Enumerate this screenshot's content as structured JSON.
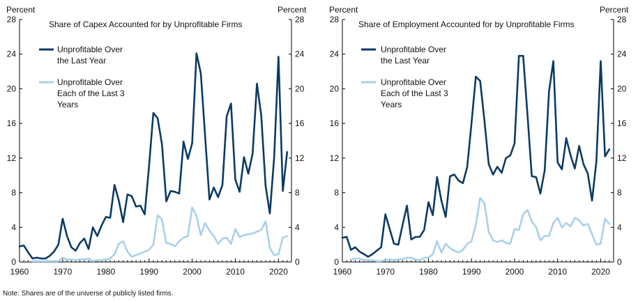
{
  "note": "Note: Shares are of the universe of publicly listed firms.",
  "colors": {
    "dark": "#0b3a63",
    "light": "#a9d0ea"
  },
  "chart_data": [
    {
      "type": "line",
      "title": "Share of Capex Accounted for by Unprofitable  Firms",
      "ylabel_left": "Percent",
      "ylabel_right": "Percent",
      "ylim": [
        0,
        28
      ],
      "yticks": [
        0,
        4,
        8,
        12,
        16,
        20,
        24,
        28
      ],
      "xlim": [
        1960,
        2023
      ],
      "xticks": [
        1960,
        1970,
        1980,
        1990,
        2000,
        2010,
        2020
      ],
      "legend_position": "top-left",
      "series": [
        {
          "name": "Unprofitable Over the Last Year",
          "legend_lines": [
            "Unprofitable Over",
            "the Last Year"
          ],
          "color": "#0b3a63",
          "x": [
            1960,
            1961,
            1962,
            1963,
            1964,
            1965,
            1966,
            1967,
            1968,
            1969,
            1970,
            1971,
            1972,
            1973,
            1974,
            1975,
            1976,
            1977,
            1978,
            1979,
            1980,
            1981,
            1982,
            1983,
            1984,
            1985,
            1986,
            1987,
            1988,
            1989,
            1990,
            1991,
            1992,
            1993,
            1994,
            1995,
            1996,
            1997,
            1998,
            1999,
            2000,
            2001,
            2002,
            2003,
            2004,
            2005,
            2006,
            2007,
            2008,
            2009,
            2010,
            2011,
            2012,
            2013,
            2014,
            2015,
            2016,
            2017,
            2018,
            2019,
            2020,
            2021,
            2022
          ],
          "values": [
            1.8,
            1.9,
            1.1,
            0.4,
            0.5,
            0.4,
            0.4,
            0.7,
            1.2,
            2.0,
            5.0,
            3.0,
            1.7,
            1.3,
            2.2,
            2.7,
            1.5,
            4.0,
            3.0,
            4.2,
            5.2,
            5.1,
            8.9,
            7.1,
            4.6,
            7.8,
            7.6,
            6.4,
            6.5,
            5.5,
            11.0,
            17.2,
            16.6,
            13.6,
            7.0,
            8.2,
            8.1,
            7.9,
            13.9,
            11.9,
            13.7,
            24.1,
            21.8,
            14.5,
            7.2,
            8.6,
            7.5,
            8.9,
            16.8,
            18.3,
            9.5,
            8.1,
            12.1,
            10.2,
            12.5,
            20.6,
            16.9,
            8.8,
            5.6,
            12.1,
            23.7,
            8.2,
            12.7
          ]
        },
        {
          "name": "Unprofitable Over Each of the Last 3 Years",
          "legend_lines": [
            "Unprofitable Over",
            "Each of the Last 3",
            "Years"
          ],
          "color": "#a9d0ea",
          "x": [
            1963,
            1964,
            1965,
            1966,
            1967,
            1968,
            1969,
            1970,
            1971,
            1972,
            1973,
            1974,
            1975,
            1976,
            1977,
            1978,
            1979,
            1980,
            1981,
            1982,
            1983,
            1984,
            1985,
            1986,
            1987,
            1988,
            1989,
            1990,
            1991,
            1992,
            1993,
            1994,
            1995,
            1996,
            1997,
            1998,
            1999,
            2000,
            2001,
            2002,
            2003,
            2004,
            2005,
            2006,
            2007,
            2008,
            2009,
            2010,
            2011,
            2012,
            2013,
            2014,
            2015,
            2016,
            2017,
            2018,
            2019,
            2020,
            2021,
            2022
          ],
          "values": [
            0.1,
            0.1,
            0.1,
            0.1,
            0.1,
            0.1,
            0.1,
            0.5,
            0.3,
            0.3,
            0.2,
            0.3,
            0.3,
            0.4,
            0.1,
            0.2,
            0.2,
            0.3,
            0.4,
            0.9,
            2.1,
            2.4,
            1.2,
            0.6,
            0.8,
            1.0,
            1.2,
            1.4,
            2.0,
            5.4,
            4.9,
            2.2,
            2.1,
            1.8,
            2.4,
            2.8,
            3.0,
            6.3,
            5.3,
            3.1,
            4.5,
            3.6,
            3.0,
            2.1,
            2.7,
            2.8,
            2.1,
            3.8,
            2.9,
            3.1,
            3.2,
            3.3,
            3.5,
            3.7,
            4.7,
            1.6,
            0.8,
            0.9,
            2.8,
            3.0
          ]
        }
      ]
    },
    {
      "type": "line",
      "title": "Share of Employment Accounted for by Unprofitable  Firms",
      "ylabel_left": "Percent",
      "ylabel_right": "Percent",
      "ylim": [
        0,
        28
      ],
      "yticks": [
        0,
        4,
        8,
        12,
        16,
        20,
        24,
        28
      ],
      "xlim": [
        1960,
        2023
      ],
      "xticks": [
        1960,
        1970,
        1980,
        1990,
        2000,
        2010,
        2020
      ],
      "legend_position": "top-left",
      "series": [
        {
          "name": "Unprofitable Over the Last Year",
          "legend_lines": [
            "Unprofitable Over",
            "the Last Year"
          ],
          "color": "#0b3a63",
          "x": [
            1960,
            1961,
            1962,
            1963,
            1964,
            1965,
            1966,
            1967,
            1968,
            1969,
            1970,
            1971,
            1972,
            1973,
            1974,
            1975,
            1976,
            1977,
            1978,
            1979,
            1980,
            1981,
            1982,
            1983,
            1984,
            1985,
            1986,
            1987,
            1988,
            1989,
            1990,
            1991,
            1992,
            1993,
            1994,
            1995,
            1996,
            1997,
            1998,
            1999,
            2000,
            2001,
            2002,
            2003,
            2004,
            2005,
            2006,
            2007,
            2008,
            2009,
            2010,
            2011,
            2012,
            2013,
            2014,
            2015,
            2016,
            2017,
            2018,
            2019,
            2020,
            2021,
            2022
          ],
          "values": [
            2.8,
            2.9,
            1.4,
            1.7,
            1.2,
            0.9,
            0.6,
            0.9,
            1.3,
            1.7,
            5.5,
            3.8,
            2.1,
            2.0,
            4.3,
            6.5,
            2.6,
            2.9,
            2.9,
            3.7,
            6.9,
            5.4,
            9.8,
            7.1,
            5.2,
            9.9,
            10.1,
            9.4,
            9.1,
            11.0,
            16.0,
            21.4,
            20.9,
            16.3,
            11.3,
            10.1,
            11.0,
            10.3,
            12.0,
            12.3,
            13.7,
            23.8,
            23.8,
            17.0,
            9.9,
            9.8,
            7.9,
            10.6,
            19.7,
            23.2,
            11.5,
            10.7,
            14.3,
            12.3,
            10.8,
            13.4,
            11.3,
            10.2,
            7.1,
            11.6,
            23.2,
            12.2,
            13.0
          ]
        },
        {
          "name": "Unprofitable Over Each of the Last 3 Years",
          "legend_lines": [
            "Unprofitable Over",
            "Each of the Last 3",
            "Years"
          ],
          "color": "#a9d0ea",
          "x": [
            1962,
            1963,
            1964,
            1965,
            1966,
            1967,
            1968,
            1969,
            1970,
            1971,
            1972,
            1973,
            1974,
            1975,
            1976,
            1977,
            1978,
            1979,
            1980,
            1981,
            1982,
            1983,
            1984,
            1985,
            1986,
            1987,
            1988,
            1989,
            1990,
            1991,
            1992,
            1993,
            1994,
            1995,
            1996,
            1997,
            1998,
            1999,
            2000,
            2001,
            2002,
            2003,
            2004,
            2005,
            2006,
            2007,
            2008,
            2009,
            2010,
            2011,
            2012,
            2013,
            2014,
            2015,
            2016,
            2017,
            2018,
            2019,
            2020,
            2021,
            2022
          ],
          "values": [
            0.3,
            0.4,
            0.4,
            0.2,
            0.2,
            0.2,
            0.1,
            0.1,
            0.2,
            0.3,
            0.2,
            0.3,
            0.3,
            0.5,
            0.5,
            0.3,
            0.2,
            0.5,
            0.5,
            0.9,
            2.4,
            1.1,
            2.1,
            1.6,
            1.3,
            1.1,
            1.4,
            2.1,
            2.4,
            4.3,
            7.4,
            6.8,
            3.5,
            2.5,
            2.3,
            2.5,
            2.2,
            2.1,
            3.8,
            3.7,
            5.5,
            6.0,
            4.7,
            4.0,
            2.5,
            3.0,
            3.0,
            4.5,
            5.1,
            4.0,
            4.5,
            4.1,
            5.1,
            4.8,
            4.2,
            4.4,
            3.2,
            2.0,
            2.1,
            5.0,
            4.4
          ]
        }
      ]
    }
  ]
}
